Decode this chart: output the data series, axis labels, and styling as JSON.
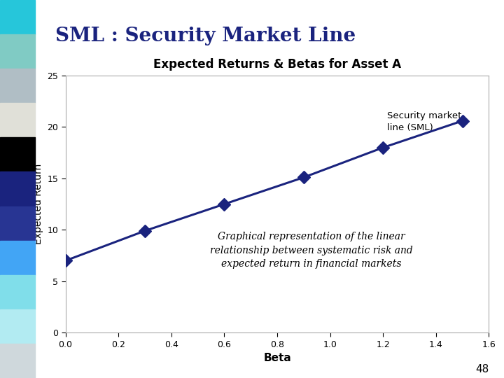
{
  "title": "SML : Security Market Line",
  "chart_title": "Expected Returns & Betas for Asset A",
  "xlabel": "Beta",
  "ylabel": "Expected Return",
  "betas": [
    0,
    0.3,
    0.6,
    0.9,
    1.2,
    1.5
  ],
  "returns": [
    7,
    9.9,
    12.5,
    15.1,
    18.0,
    20.6
  ],
  "line_color": "#1a237e",
  "marker_color": "#1a237e",
  "xlim": [
    0,
    1.6
  ],
  "ylim": [
    0,
    25
  ],
  "xticks": [
    0,
    0.2,
    0.4,
    0.6,
    0.8,
    1.0,
    1.2,
    1.4,
    1.6
  ],
  "yticks": [
    0,
    5,
    10,
    15,
    20,
    25
  ],
  "annotation_text": "Graphical representation of the linear\nrelationship between systematic risk and\nexpected return in financial markets",
  "legend_text": "Security market\nline (SML)",
  "title_color": "#1a237e",
  "slide_bg": "#ffffff",
  "page_number": "48",
  "left_stripe_colors": [
    "#26c6da",
    "#80cbc4",
    "#b0bec5",
    "#e0e0d8",
    "#000000",
    "#1a237e",
    "#283593",
    "#42a5f5",
    "#80deea",
    "#b2ebf2",
    "#cfd8dc"
  ]
}
